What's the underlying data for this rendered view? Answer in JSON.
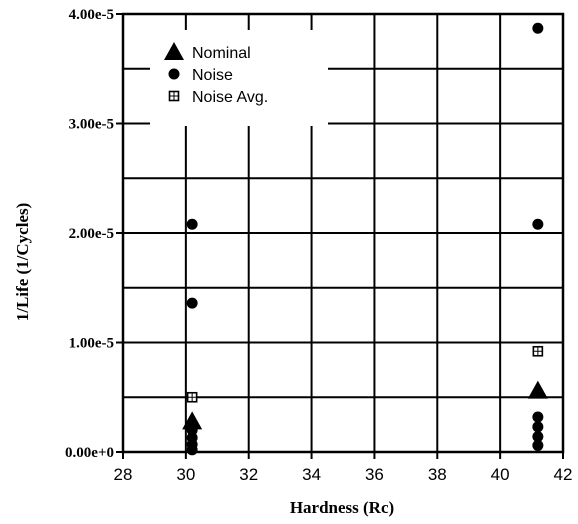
{
  "chart_data": {
    "type": "scatter",
    "title": "",
    "xlabel": "Hardness (Rc)",
    "ylabel": "1/Life (1/Cycles)",
    "xlim": [
      28,
      42
    ],
    "ylim": [
      0,
      4e-05
    ],
    "x_ticks": [
      28,
      30,
      32,
      34,
      36,
      38,
      40,
      42
    ],
    "x_tick_labels": [
      "28",
      "30",
      "32",
      "34",
      "36",
      "38",
      "40",
      "42"
    ],
    "y_ticks": [
      0,
      1e-05,
      2e-05,
      3e-05,
      4e-05
    ],
    "y_tick_labels": [
      "0.00e+0",
      "1.00e-5",
      "2.00e-5",
      "3.00e-5",
      "4.00e-5"
    ],
    "grid": true,
    "legend_position": "top-left",
    "series": [
      {
        "name": "Nominal",
        "marker": "triangle",
        "points": [
          {
            "x": 30.2,
            "y": 2.8e-06
          },
          {
            "x": 41.2,
            "y": 5.6e-06
          }
        ]
      },
      {
        "name": "Noise",
        "marker": "circle",
        "points": [
          {
            "x": 30.2,
            "y": 2.08e-05
          },
          {
            "x": 30.2,
            "y": 1.36e-05
          },
          {
            "x": 30.2,
            "y": 2e-06
          },
          {
            "x": 30.2,
            "y": 1.3e-06
          },
          {
            "x": 30.2,
            "y": 7e-07
          },
          {
            "x": 30.2,
            "y": 2e-07
          },
          {
            "x": 41.2,
            "y": 3.87e-05
          },
          {
            "x": 41.2,
            "y": 2.08e-05
          },
          {
            "x": 41.2,
            "y": 3.2e-06
          },
          {
            "x": 41.2,
            "y": 2.3e-06
          },
          {
            "x": 41.2,
            "y": 1.4e-06
          },
          {
            "x": 41.2,
            "y": 6e-07
          }
        ]
      },
      {
        "name": "Noise Avg.",
        "marker": "square",
        "points": [
          {
            "x": 30.2,
            "y": 5e-06
          },
          {
            "x": 41.2,
            "y": 9.2e-06
          }
        ]
      }
    ]
  }
}
